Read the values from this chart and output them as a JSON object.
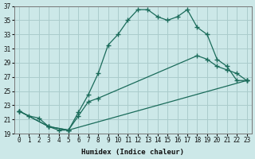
{
  "xlabel": "Humidex (Indice chaleur)",
  "bg_color": "#cce8e8",
  "grid_color": "#aacccc",
  "line_color": "#1a6b5a",
  "xlim": [
    -0.5,
    23.5
  ],
  "ylim": [
    19,
    37
  ],
  "yticks": [
    19,
    21,
    23,
    25,
    27,
    29,
    31,
    33,
    35,
    37
  ],
  "xticks": [
    0,
    1,
    2,
    3,
    4,
    5,
    6,
    7,
    8,
    9,
    10,
    11,
    12,
    13,
    14,
    15,
    16,
    17,
    18,
    19,
    20,
    21,
    22,
    23
  ],
  "series": [
    {
      "x": [
        0,
        1,
        2,
        3,
        4,
        5,
        6,
        7,
        8,
        9,
        10,
        11,
        12,
        13,
        14,
        15,
        16,
        17,
        18,
        19,
        20,
        21,
        22,
        23
      ],
      "y": [
        22.2,
        21.5,
        21.2,
        20.0,
        19.5,
        19.5,
        22.0,
        24.5,
        27.5,
        31.5,
        33.0,
        35.0,
        36.5,
        36.5,
        35.5,
        35.0,
        35.5,
        36.5,
        34.0,
        33.0,
        29.5,
        28.5,
        26.5,
        26.5
      ]
    },
    {
      "x": [
        0,
        3,
        5,
        6,
        7,
        8,
        18,
        19,
        20,
        21,
        22,
        23
      ],
      "y": [
        22.2,
        20.0,
        19.5,
        21.5,
        23.5,
        24.0,
        30.0,
        29.5,
        28.5,
        28.0,
        27.5,
        26.5
      ]
    },
    {
      "x": [
        0,
        3,
        5,
        23
      ],
      "y": [
        22.2,
        20.0,
        19.5,
        26.5
      ]
    }
  ]
}
